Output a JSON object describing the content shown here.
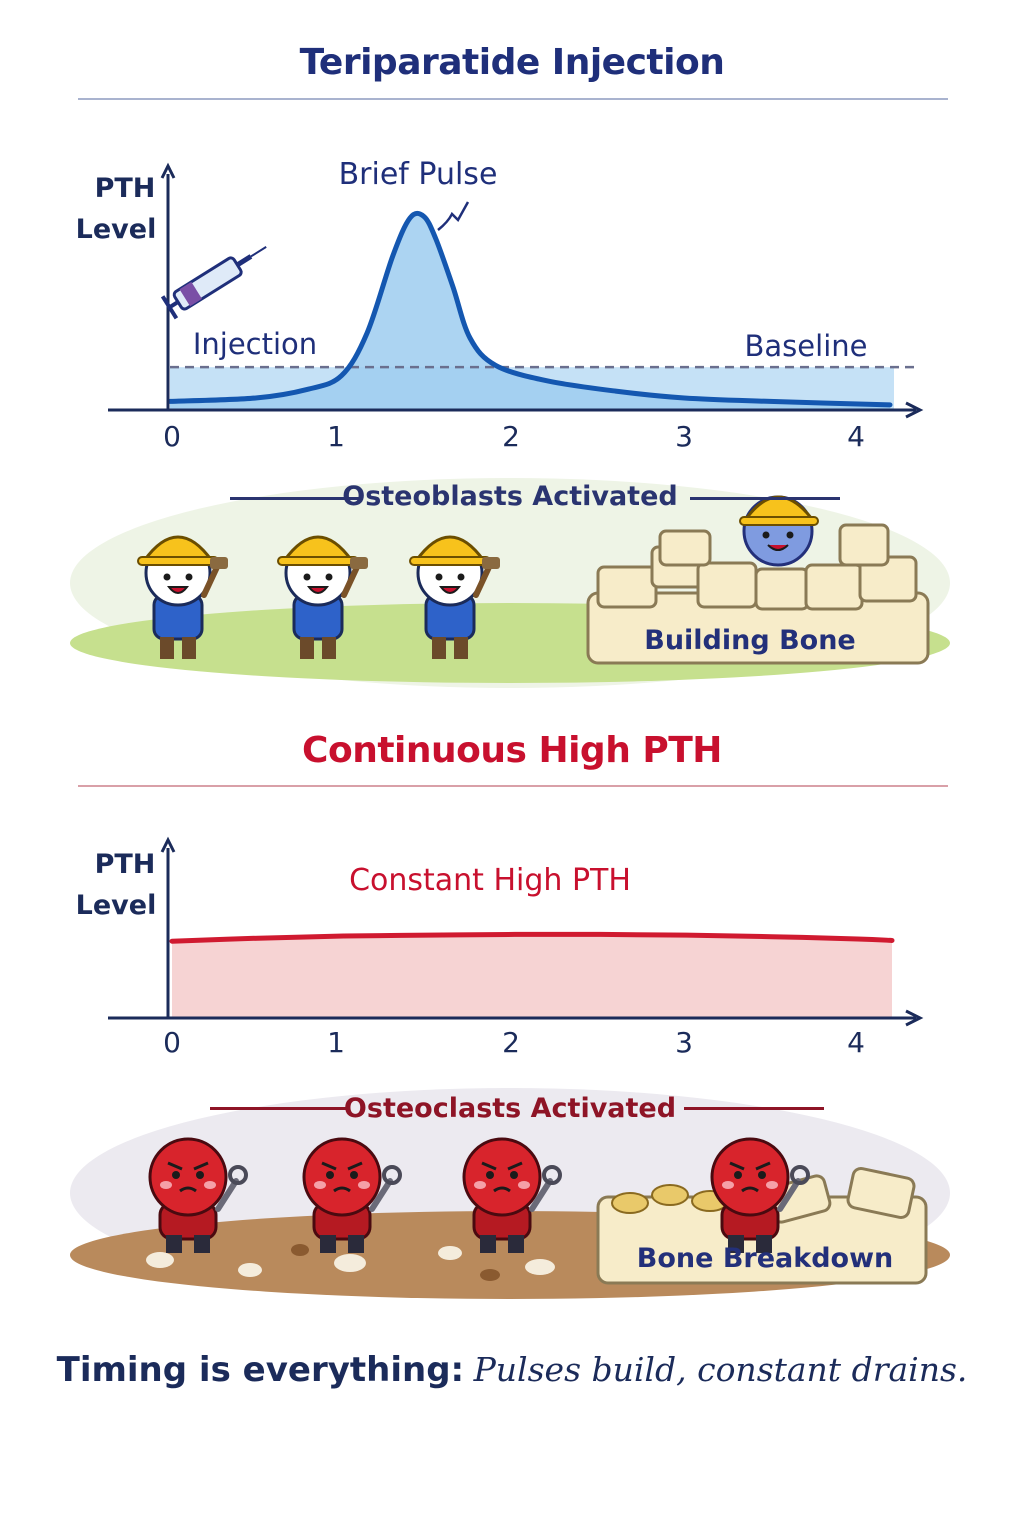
{
  "sections": [
    {
      "title": "Teriparatide Injection",
      "banner": "Osteoblasts Activated",
      "block_label": "Building Bone"
    },
    {
      "title": "Continuous High PTH",
      "banner": "Osteoclasts Activated",
      "block_label": "Bone Breakdown"
    }
  ],
  "footer": {
    "bold": "Timing is everything:",
    "italic": "Pulses build, constant drains."
  },
  "colors": {
    "pulse_line": "#1457b0",
    "pulse_fill": "#9ecdf0",
    "constant_line": "#d01a30",
    "constant_fill": "#f6d3d3",
    "title_blue": "#1f2f7a",
    "title_red": "#c8102e"
  },
  "icons": {
    "syringe": "syringe-icon",
    "osteoblast": "osteoblast-worker-icon",
    "osteoclast": "osteoclast-cell-icon"
  },
  "chart_data": [
    {
      "type": "area",
      "ylabel": "PTH Level",
      "xlabel": "",
      "x_ticks": [
        "0",
        "1",
        "2",
        "3",
        "4"
      ],
      "xlim": [
        0,
        4.2
      ],
      "ylim": [
        0,
        1.4
      ],
      "baseline": 0.25,
      "baseline_label": "Baseline",
      "annotations": [
        "Brief Pulse",
        "Injection"
      ],
      "x": [
        0,
        0.5,
        0.8,
        1.0,
        1.15,
        1.3,
        1.4,
        1.48,
        1.55,
        1.65,
        1.75,
        1.9,
        2.2,
        2.6,
        3.0,
        3.5,
        4.2
      ],
      "y": [
        0.05,
        0.07,
        0.12,
        0.2,
        0.45,
        0.9,
        1.12,
        1.13,
        1.0,
        0.72,
        0.42,
        0.26,
        0.17,
        0.11,
        0.07,
        0.05,
        0.03
      ]
    },
    {
      "type": "area",
      "ylabel": "PTH Level",
      "xlabel": "",
      "x_ticks": [
        "0",
        "1",
        "2",
        "3",
        "4"
      ],
      "xlim": [
        0,
        4.2
      ],
      "ylim": [
        0,
        1.4
      ],
      "line_label": "Constant High PTH",
      "x": [
        0,
        0.5,
        1,
        1.5,
        2,
        2.5,
        3,
        3.5,
        4,
        4.2
      ],
      "y": [
        1.02,
        1.06,
        1.09,
        1.1,
        1.11,
        1.11,
        1.1,
        1.08,
        1.05,
        1.03
      ]
    }
  ]
}
